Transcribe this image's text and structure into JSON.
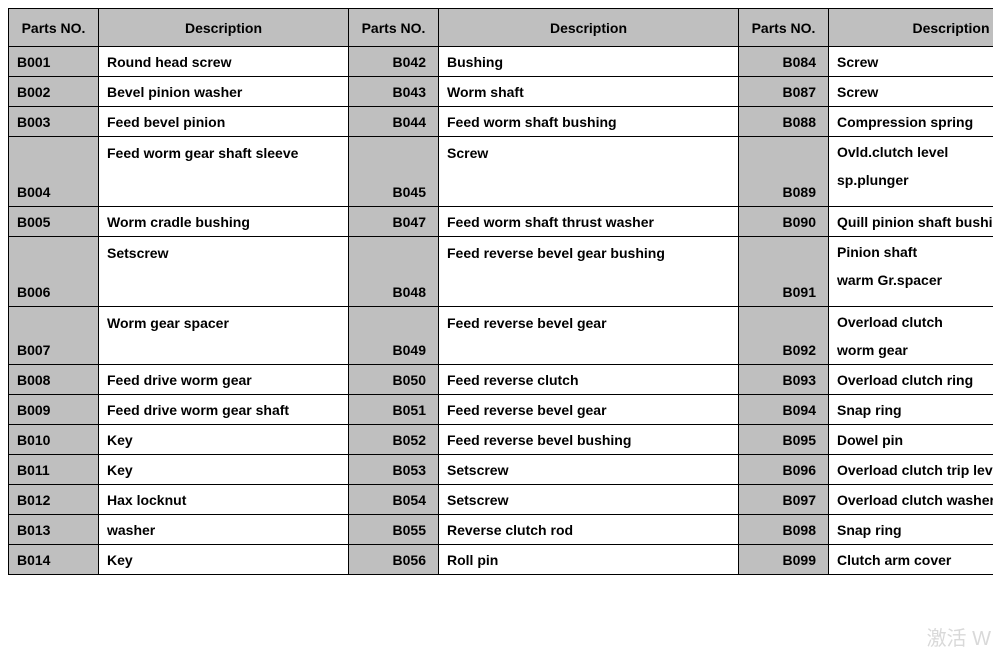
{
  "headers": {
    "partsNo": "Parts NO.",
    "description": "Description"
  },
  "columns": [
    [
      {
        "pn": "B001",
        "desc": "Round head screw"
      },
      {
        "pn": "B002",
        "desc": "Bevel pinion washer"
      },
      {
        "pn": "B003",
        "desc": "Feed bevel pinion"
      },
      {
        "pn": "B004",
        "desc": "Feed worm gear shaft sleeve",
        "tall": true
      },
      {
        "pn": "B005",
        "desc": "Worm cradle bushing"
      },
      {
        "pn": "B006",
        "desc": "Setscrew",
        "tall": true
      },
      {
        "pn": "B007",
        "desc": "Worm gear spacer",
        "mid": true
      },
      {
        "pn": "B008",
        "desc": "Feed drive worm gear"
      },
      {
        "pn": "B009",
        "desc": "Feed drive worm gear shaft"
      },
      {
        "pn": "B010",
        "desc": "Key"
      },
      {
        "pn": "B011",
        "desc": "Key"
      },
      {
        "pn": "B012",
        "desc": "Hax locknut"
      },
      {
        "pn": "B013",
        "desc": "washer"
      },
      {
        "pn": "B014",
        "desc": "Key"
      }
    ],
    [
      {
        "pn": "B042",
        "desc": "Bushing"
      },
      {
        "pn": "B043",
        "desc": "Worm shaft"
      },
      {
        "pn": "B044",
        "desc": "Feed worm shaft bushing"
      },
      {
        "pn": "B045",
        "desc": "Screw"
      },
      {
        "pn": "B047",
        "desc": "Feed worm shaft thrust washer"
      },
      {
        "pn": "B048",
        "desc": "Feed reverse bevel gear bushing"
      },
      {
        "pn": "B049",
        "desc": "Feed reverse bevel gear"
      },
      {
        "pn": "B050",
        "desc": "Feed reverse clutch"
      },
      {
        "pn": "B051",
        "desc": "Feed reverse bevel gear"
      },
      {
        "pn": "B052",
        "desc": "Feed reverse bevel bushing"
      },
      {
        "pn": "B053",
        "desc": "Setscrew"
      },
      {
        "pn": "B054",
        "desc": "Setscrew"
      },
      {
        "pn": "B055",
        "desc": "Reverse clutch rod"
      },
      {
        "pn": "B056",
        "desc": "Roll pin"
      }
    ],
    [
      {
        "pn": "B084",
        "desc": "Screw"
      },
      {
        "pn": "B087",
        "desc": "Screw"
      },
      {
        "pn": "B088",
        "desc": "Compression spring"
      },
      {
        "pn": "B089",
        "desc": "Ovld.clutch level sp.plunger",
        "multi": true
      },
      {
        "pn": "B090",
        "desc": "Quill pinion shaft bushing"
      },
      {
        "pn": "B091",
        "desc": "Pinion shaft warm Gr.spacer",
        "multi": true
      },
      {
        "pn": "B092",
        "desc": "Overload clutch worm gear",
        "multi": true
      },
      {
        "pn": "B093",
        "desc": "Overload clutch ring"
      },
      {
        "pn": "B094",
        "desc": "Snap ring"
      },
      {
        "pn": "B095",
        "desc": "Dowel pin"
      },
      {
        "pn": "B096",
        "desc": "Overload clutch trip level"
      },
      {
        "pn": "B097",
        "desc": "Overload clutch washer"
      },
      {
        "pn": "B098",
        "desc": "Snap ring"
      },
      {
        "pn": "B099",
        "desc": "Clutch arm cover"
      }
    ]
  ],
  "watermark": "激活 W"
}
